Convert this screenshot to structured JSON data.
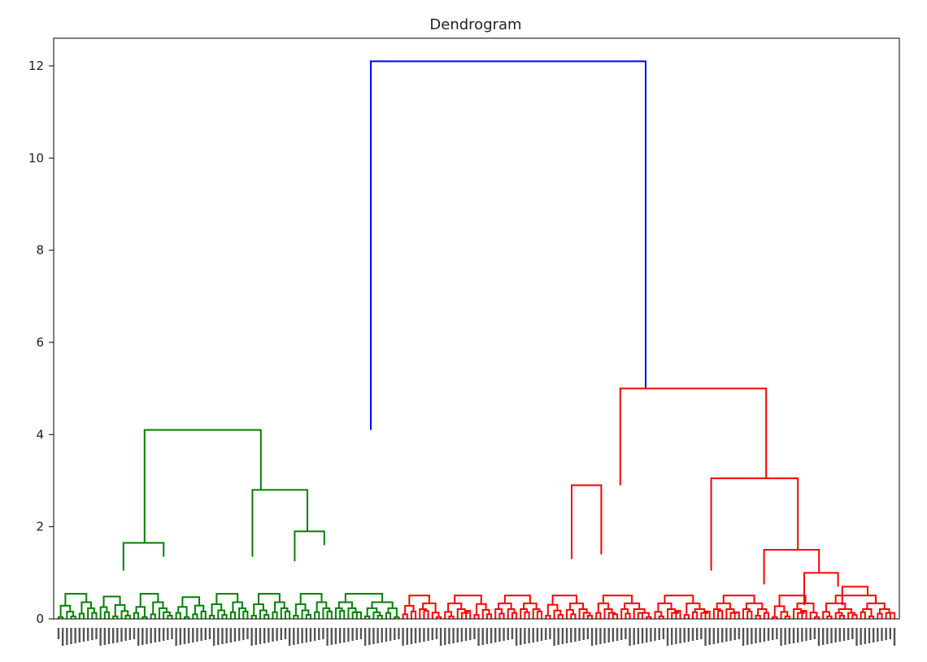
{
  "chart_data": {
    "type": "dendrogram",
    "title": "Dendrogram",
    "xlabel": "",
    "ylabel": "",
    "ylim": [
      0,
      12.6
    ],
    "yticks": [
      0,
      2,
      4,
      6,
      8,
      10,
      12
    ],
    "grid": false,
    "leaf_count": 200,
    "leaf_labels_legible": false,
    "colors": {
      "root": "#0000ff",
      "cluster_1": "#008000",
      "cluster_2": "#ff0000"
    },
    "merges": [
      {
        "left_x": [
          0.15,
          0.6
        ],
        "right_x": [
          0.6,
          0.8
        ],
        "height": 12.1,
        "left_child_height": 4.1,
        "right_child_height": 5.0,
        "color": "root"
      },
      {
        "left_x": [
          0.06,
          0.155
        ],
        "right_x": [
          0.155,
          0.335
        ],
        "height": 4.1,
        "left_child_height": 1.65,
        "right_child_height": 2.8,
        "color": "cluster_1"
      },
      {
        "left_x": [
          0.6,
          0.74
        ],
        "right_x": [
          0.74,
          0.945
        ],
        "height": 5.0,
        "left_child_height": 2.9,
        "right_child_height": 3.05,
        "color": "cluster_2"
      },
      {
        "left_x": [
          0.06,
          0.105
        ],
        "right_x": [
          0.105,
          0.155
        ],
        "height": 1.65,
        "left_child_height": 1.05,
        "right_child_height": 1.35,
        "color": "cluster_1"
      },
      {
        "left_x": [
          0.205,
          0.265
        ],
        "right_x": [
          0.265,
          0.335
        ],
        "height": 2.8,
        "left_child_height": 1.35,
        "right_child_height": 1.9,
        "color": "cluster_1"
      },
      {
        "left_x": [
          0.265,
          0.305
        ],
        "right_x": [
          0.305,
          0.335
        ],
        "height": 1.9,
        "left_child_height": 1.25,
        "right_child_height": 1.6,
        "color": "cluster_1"
      },
      {
        "left_x": [
          0.6,
          0.625
        ],
        "right_x": [
          0.625,
          0.67
        ],
        "height": 2.9,
        "left_child_height": 1.3,
        "right_child_height": 1.4,
        "color": "cluster_2"
      },
      {
        "left_x": [
          0.74,
          0.815
        ],
        "right_x": [
          0.815,
          0.945
        ],
        "height": 3.05,
        "left_child_height": 1.05,
        "right_child_height": 1.5,
        "color": "cluster_2"
      },
      {
        "left_x": [
          0.815,
          0.865
        ],
        "right_x": [
          0.865,
          0.945
        ],
        "height": 1.5,
        "left_child_height": 0.75,
        "right_child_height": 1.0,
        "color": "cluster_2"
      },
      {
        "left_x": [
          0.865,
          0.91
        ],
        "right_x": [
          0.91,
          0.945
        ],
        "height": 1.0,
        "left_child_height": 0.3,
        "right_child_height": 0.7,
        "color": "cluster_2"
      },
      {
        "left_x": [
          0.91,
          0.955
        ],
        "right_x": [
          0.955,
          0.97
        ],
        "height": 0.7,
        "left_child_height": 0.3,
        "right_child_height": 0.5,
        "color": "cluster_2"
      }
    ]
  }
}
